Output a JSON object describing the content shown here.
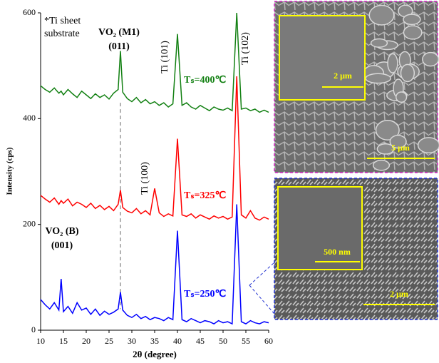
{
  "chart_data": {
    "type": "line",
    "x_label": "2θ (degree)",
    "y_label": "Intensity (cps)",
    "xlim": [
      10,
      60
    ],
    "ylim": [
      0,
      600
    ],
    "xticks": [
      10,
      15,
      20,
      25,
      30,
      35,
      40,
      45,
      50,
      55,
      60
    ],
    "yticks": [
      0,
      200,
      400,
      600
    ],
    "x": [
      10,
      11,
      12,
      13,
      14,
      14.5,
      15,
      16,
      17,
      18,
      19,
      20,
      21,
      22,
      23,
      24,
      25,
      26,
      27,
      27.5,
      28,
      29,
      30,
      31,
      32,
      33,
      34,
      35,
      36,
      37,
      38,
      39,
      40,
      41,
      42,
      43,
      44,
      45,
      46,
      47,
      48,
      49,
      50,
      51,
      52,
      53,
      54,
      55,
      56,
      57,
      58,
      59,
      60
    ],
    "series": [
      {
        "name": "Tₛ=400℃",
        "color": "#128012",
        "values": [
          462,
          455,
          450,
          458,
          448,
          452,
          445,
          455,
          447,
          440,
          452,
          445,
          438,
          447,
          440,
          445,
          437,
          448,
          455,
          528,
          450,
          438,
          432,
          440,
          430,
          436,
          428,
          432,
          425,
          430,
          422,
          428,
          560,
          425,
          430,
          422,
          418,
          425,
          420,
          415,
          422,
          418,
          416,
          420,
          415,
          600,
          418,
          420,
          415,
          418,
          412,
          416,
          412
        ]
      },
      {
        "name": "Tₛ=325℃",
        "color": "#ff0000",
        "values": [
          255,
          248,
          242,
          250,
          238,
          245,
          240,
          248,
          235,
          242,
          238,
          232,
          240,
          230,
          236,
          228,
          234,
          226,
          238,
          265,
          232,
          225,
          222,
          230,
          220,
          226,
          218,
          268,
          222,
          215,
          220,
          216,
          362,
          218,
          215,
          220,
          212,
          218,
          214,
          210,
          216,
          212,
          215,
          210,
          214,
          480,
          218,
          212,
          226,
          212,
          208,
          214,
          210
        ]
      },
      {
        "name": "Tₛ=250℃",
        "color": "#0000ff",
        "values": [
          58,
          48,
          40,
          52,
          38,
          97,
          35,
          45,
          32,
          52,
          38,
          42,
          30,
          40,
          28,
          36,
          30,
          34,
          40,
          72,
          38,
          28,
          24,
          30,
          22,
          26,
          20,
          24,
          22,
          18,
          24,
          20,
          188,
          20,
          16,
          22,
          18,
          14,
          18,
          16,
          12,
          18,
          14,
          16,
          12,
          238,
          16,
          12,
          18,
          14,
          12,
          16,
          14
        ]
      }
    ],
    "vline": {
      "x": 27.5,
      "color": "#999999"
    },
    "annotations": [
      "*Ti sheet",
      "substrate",
      "VO₂ (M1)",
      "(011)",
      "Ti (101)",
      "Ti (102)",
      "Ti (100)",
      "VO₂ (B)",
      "(001)"
    ]
  },
  "images": {
    "top": {
      "inset_scale": "2 μm",
      "scale": "5 μm"
    },
    "bottom": {
      "inset_scale": "500 nm",
      "scale": "2 μm"
    }
  }
}
